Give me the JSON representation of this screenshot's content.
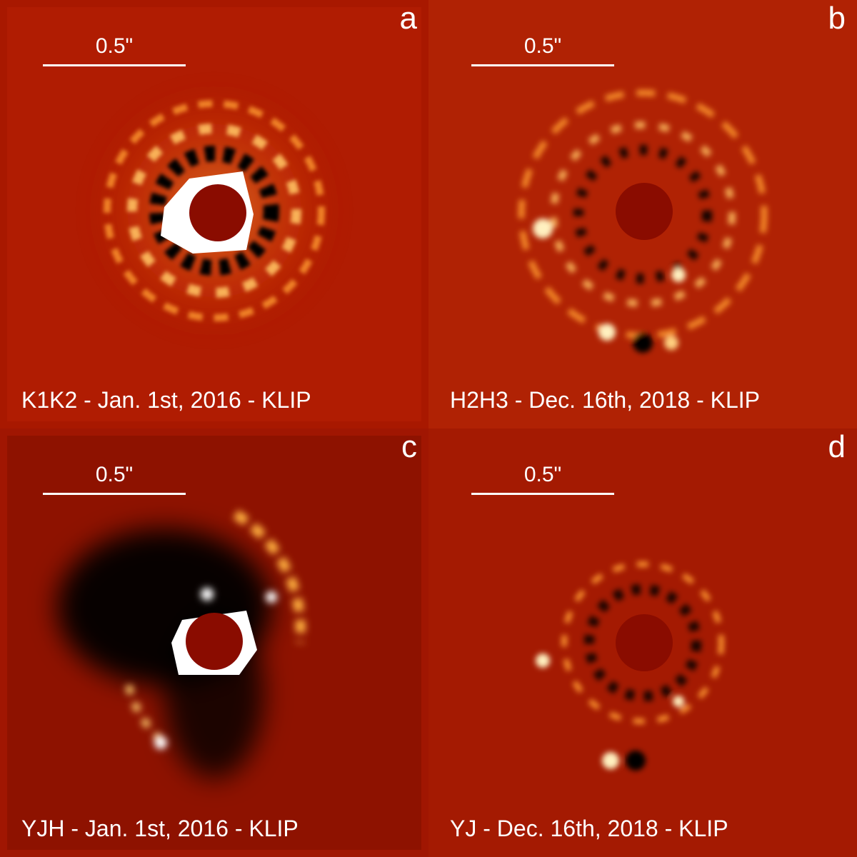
{
  "panels": [
    {
      "letter": "a",
      "scale": "0.5\"",
      "caption": "K1K2 - Jan. 1st, 2016 - KLIP"
    },
    {
      "letter": "b",
      "scale": "0.5\"",
      "caption": "H2H3 - Dec. 16th, 2018 - KLIP"
    },
    {
      "letter": "c",
      "scale": "0.5\"",
      "caption": "YJH - Jan. 1st, 2016 - KLIP"
    },
    {
      "letter": "d",
      "scale": "0.5\"",
      "caption": "YJ - Dec. 16th, 2018 - KLIP"
    }
  ],
  "colors": {
    "background": "#a81800",
    "mask": "#8a0c00",
    "bright": "#ffffff",
    "glow": "#ffb040",
    "dark": "#000000"
  }
}
